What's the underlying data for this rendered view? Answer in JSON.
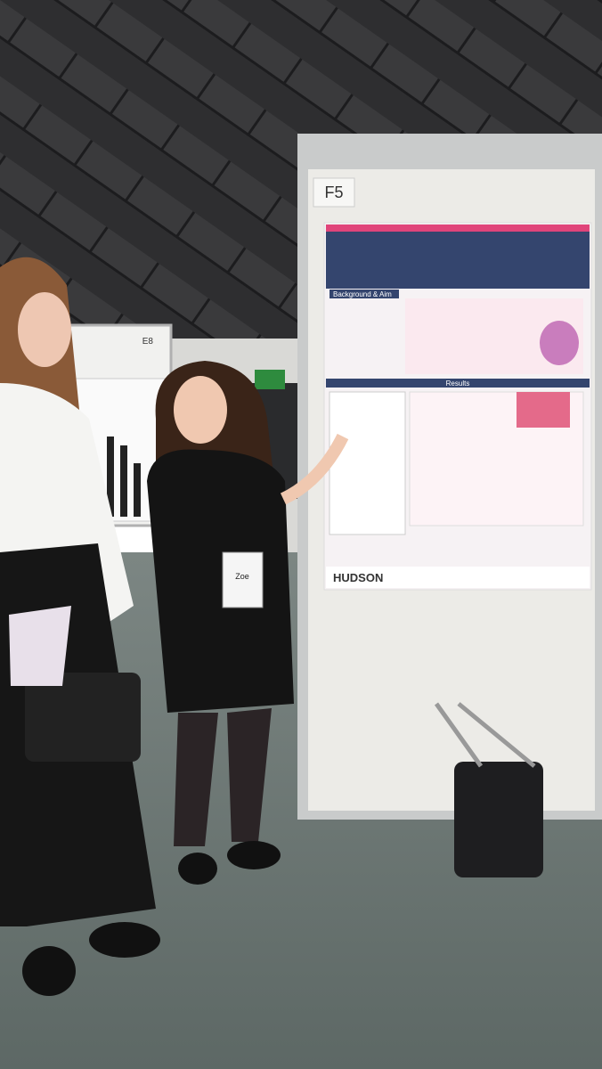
{
  "scene": {
    "board_labels": [
      "F5",
      "E8"
    ],
    "poster": {
      "sections": [
        "Background & Aim",
        "Results"
      ],
      "logo": "HUDSON"
    },
    "badge_name": "Zoe"
  }
}
